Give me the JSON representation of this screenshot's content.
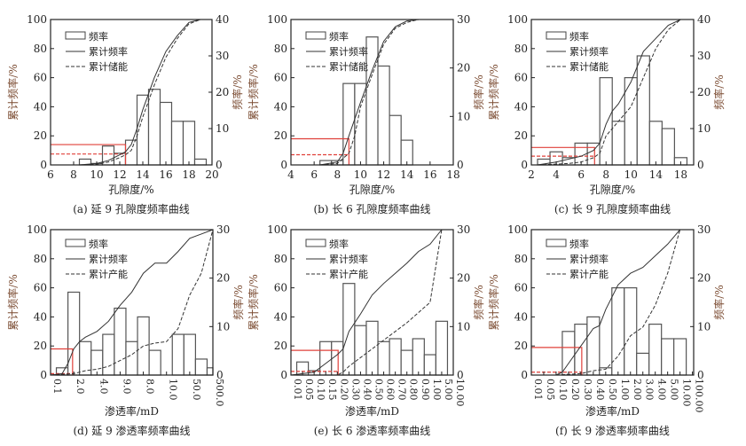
{
  "chart_data": [
    {
      "id": "a",
      "type": "bar+line",
      "caption": "(a) 延 9 孔隙度频率曲线",
      "xlabel": "孔隙度/%",
      "ylabel": "累计频率/%",
      "y2label": "频率/%",
      "legend": [
        "频率",
        "累计频率",
        "累计储能"
      ],
      "legend_position": "top-left",
      "xlim": [
        6,
        20
      ],
      "ylim": [
        0,
        100
      ],
      "y2lim": [
        0,
        40
      ],
      "xticks": [
        6,
        8,
        10,
        12,
        14,
        16,
        18,
        20
      ],
      "xticklabels": [
        "6",
        "8",
        "10",
        "12",
        "14",
        "16",
        "18",
        "20"
      ],
      "yticks": [
        0,
        20,
        40,
        60,
        80,
        100
      ],
      "y2ticks": [
        0,
        10,
        20,
        30,
        40
      ],
      "bars": {
        "edges": [
          8.5,
          9.5,
          10.5,
          11.5,
          12.5,
          13.5,
          14.5,
          15.5,
          16.5,
          17.5,
          18.5,
          19.5
        ],
        "values": [
          1.6,
          0.4,
          5.2,
          3.2,
          6.8,
          19.2,
          20.8,
          17.2,
          12,
          12,
          1.6
        ]
      },
      "cumulative_frequency": {
        "x": [
          8.5,
          10,
          11,
          12,
          12.5,
          13,
          13.5,
          14,
          15,
          16,
          17,
          18,
          19
        ],
        "y": [
          0,
          1,
          3,
          7,
          9,
          14,
          25,
          38,
          60,
          78,
          89,
          98,
          100
        ]
      },
      "cumulative_second": {
        "x": [
          8.5,
          10,
          11,
          12,
          12.5,
          13,
          13.5,
          14,
          15,
          16,
          17,
          18,
          19
        ],
        "y": [
          0,
          0.5,
          2,
          5,
          7,
          10,
          20,
          33,
          55,
          74,
          87,
          97,
          100
        ]
      },
      "cutoff": {
        "x": 12.5,
        "freq": 14,
        "second": 7.5
      }
    },
    {
      "id": "b",
      "type": "bar+line",
      "caption": "(b) 长 6 孔隙度频率曲线",
      "xlabel": "孔隙度/%",
      "ylabel": "累计频率/%",
      "y2label": "频率/%",
      "legend": [
        "频率",
        "累计频率",
        "累计储能"
      ],
      "legend_position": "top-left",
      "xlim": [
        4,
        18
      ],
      "ylim": [
        0,
        100
      ],
      "y2lim": [
        0,
        30
      ],
      "xticks": [
        4,
        6,
        8,
        10,
        12,
        14,
        16,
        18
      ],
      "xticklabels": [
        "4",
        "6",
        "8",
        "10",
        "12",
        "14",
        "16",
        "18"
      ],
      "yticks": [
        0,
        20,
        40,
        60,
        80,
        100
      ],
      "y2ticks": [
        0,
        10,
        20,
        30
      ],
      "bars": {
        "edges": [
          6.5,
          7.5,
          8.5,
          9.5,
          10.5,
          11.5,
          12.5,
          13.5,
          14.5
        ],
        "values": [
          0.9,
          0.9,
          16.8,
          16.8,
          26.4,
          20.4,
          10.2,
          5.1
        ]
      },
      "cumulative_frequency": {
        "x": [
          6.5,
          8,
          8.5,
          9,
          10,
          11,
          12,
          13,
          14,
          15
        ],
        "y": [
          0,
          2,
          8,
          20,
          43,
          65,
          85,
          95,
          99,
          100
        ]
      },
      "cumulative_second": {
        "x": [
          6.5,
          8,
          9,
          9.5,
          10,
          11,
          12,
          13,
          14,
          15
        ],
        "y": [
          0,
          1,
          8,
          20,
          40,
          62,
          83,
          94,
          98,
          100
        ]
      },
      "cutoff": {
        "x": 9.0,
        "freq": 18,
        "second": 7
      }
    },
    {
      "id": "c",
      "type": "bar+line",
      "caption": "(c) 长 9 孔隙度频率曲线",
      "xlabel": "孔隙度/%",
      "ylabel": "累计频率/%",
      "y2label": "频率/%",
      "legend": [
        "频率",
        "累计频率",
        "累计储能"
      ],
      "legend_position": "top-left",
      "xlim": [
        0,
        6.52
      ],
      "ylim": [
        0,
        100
      ],
      "y2lim": [
        0,
        40
      ],
      "xticks": [
        0,
        1,
        2,
        3,
        4,
        5,
        6
      ],
      "xticklabels": [
        "2",
        "4",
        "6",
        "8",
        "10",
        "14",
        "18"
      ],
      "yticks": [
        0,
        20,
        40,
        60,
        80,
        100
      ],
      "y2ticks": [
        0,
        10,
        20,
        30,
        40
      ],
      "bars": {
        "edges": [
          0.25,
          0.75,
          1.25,
          1.75,
          2.25,
          2.75,
          3.25,
          3.75,
          4.25,
          4.75,
          5.25,
          5.75,
          6.25
        ],
        "values": [
          1.6,
          3.6,
          2,
          6,
          6,
          24,
          12,
          24,
          30,
          12,
          10,
          2
        ]
      },
      "cumulative_frequency": {
        "x": [
          0.25,
          1,
          1.5,
          2,
          2.5,
          2.75,
          3,
          3.25,
          3.5,
          4,
          4.5,
          5,
          5.5,
          6
        ],
        "y": [
          0,
          2,
          4,
          6,
          10,
          15,
          28,
          37,
          42,
          57,
          78,
          87,
          96,
          100
        ]
      },
      "cumulative_second": {
        "x": [
          0.25,
          1,
          1.5,
          2,
          2.5,
          2.75,
          3,
          3.5,
          4,
          4.5,
          5,
          5.5,
          6
        ],
        "y": [
          0,
          0.5,
          1,
          2,
          5,
          8,
          20,
          30,
          40,
          60,
          80,
          93,
          100
        ]
      },
      "cutoff": {
        "x": 2.54,
        "freq": 12,
        "second": 6
      }
    },
    {
      "id": "d",
      "type": "bar+line",
      "caption": "(d) 延 9 渗透率频率曲线",
      "xlabel": "渗透率/mD",
      "ylabel": "累计频率/%",
      "y2label": "频率/%",
      "legend": [
        "频率",
        "累计频率",
        "累计产能"
      ],
      "legend_position": "top-left",
      "xlim": [
        0,
        7
      ],
      "ylim": [
        0,
        100
      ],
      "y2lim": [
        0,
        30
      ],
      "xticks": [
        0,
        1,
        2,
        3,
        4,
        5,
        6,
        7
      ],
      "xticklabels": [
        "0.1",
        "2.0",
        "4.0",
        "9.0",
        "8.0",
        "10.0",
        "50.0",
        "500.0"
      ],
      "yticks": [
        0,
        20,
        40,
        60,
        80,
        100
      ],
      "y2ticks": [
        0,
        10,
        20,
        30
      ],
      "bars": {
        "edges": [
          0.25,
          0.75,
          1.25,
          1.75,
          2.25,
          2.75,
          3.25,
          3.75,
          4.25,
          4.75,
          5.25,
          5.75,
          6.25,
          6.75,
          7.0
        ],
        "values": [
          1.5,
          17.1,
          6.9,
          5.1,
          8.4,
          13.8,
          6.9,
          12,
          5.1,
          0,
          8.4,
          8.4,
          3.3,
          1.5
        ]
      },
      "cumulative_frequency": {
        "x": [
          0,
          0.5,
          0.75,
          1,
          1.25,
          1.5,
          2,
          2.5,
          3,
          3.5,
          4,
          4.5,
          5,
          5.5,
          6,
          6.5,
          7
        ],
        "y": [
          0,
          1,
          8,
          18,
          23,
          26,
          30,
          37,
          48,
          57,
          70,
          77,
          77,
          85,
          94,
          97,
          100
        ]
      },
      "cumulative_second": {
        "x": [
          0,
          1,
          1.5,
          2,
          2.5,
          3,
          3.5,
          4,
          4.5,
          5,
          5.5,
          6,
          6.5,
          7
        ],
        "y": [
          0,
          1,
          3,
          4,
          6,
          10,
          14,
          20,
          22,
          23,
          32,
          55,
          70,
          100
        ]
      },
      "cutoff": {
        "x": 0.95,
        "freq": 18,
        "second": 1
      }
    },
    {
      "id": "e",
      "type": "bar+line",
      "caption": "(e) 长 6 渗透率频率曲线",
      "xlabel": "渗透率/mD",
      "ylabel": "累计频率/%",
      "y2label": "频率/%",
      "legend": [
        "频率",
        "累计频率",
        "累计产能"
      ],
      "legend_position": "top-left",
      "xlim": [
        0,
        14
      ],
      "ylim": [
        0,
        100
      ],
      "y2lim": [
        0,
        30
      ],
      "xticks": [
        0,
        1,
        2,
        3,
        4,
        5,
        6,
        7,
        8,
        9,
        10,
        11,
        12,
        13,
        14
      ],
      "xticklabels": [
        "0.01",
        "0.05",
        "0.10",
        "0.15",
        "0.20",
        "0.30",
        "0.40",
        "0.50",
        "0.60",
        "0.70",
        "0.80",
        "0.90",
        "1.00",
        "5.00",
        "10.00"
      ],
      "yticks": [
        0,
        20,
        40,
        60,
        80,
        100
      ],
      "y2ticks": [
        0,
        10,
        20,
        30
      ],
      "bars": {
        "edges": [
          0.5,
          1.5,
          2.5,
          3.5,
          4.5,
          5.5,
          6.5,
          7.5,
          8.5,
          9.5,
          10.5,
          11.5,
          12.5,
          13.5
        ],
        "values": [
          2.7,
          0.9,
          6.9,
          6.9,
          18.9,
          10.2,
          11.1,
          6.9,
          7.5,
          5.1,
          7.5,
          4.2,
          11.1
        ]
      },
      "cumulative_frequency": {
        "x": [
          0,
          2,
          3,
          4,
          4.5,
          5,
          6,
          7,
          8,
          9,
          10,
          11,
          12,
          13
        ],
        "y": [
          0,
          2,
          8,
          14,
          18,
          30,
          42,
          55,
          63,
          70,
          77,
          85,
          90,
          100
        ]
      },
      "cumulative_second": {
        "x": [
          0,
          4,
          4.5,
          5,
          6,
          7,
          8,
          9,
          10,
          11,
          12,
          13
        ],
        "y": [
          0,
          0,
          2,
          6,
          12,
          18,
          24,
          30,
          36,
          43,
          50,
          100
        ]
      },
      "cutoff": {
        "x": 4.07,
        "freq": 17,
        "second": 2.5
      }
    },
    {
      "id": "f",
      "type": "bar+line",
      "caption": "(f) 长 9 渗透率频率曲线",
      "xlabel": "渗透率/mD",
      "ylabel": "累计频率/%",
      "y2label": "频率/%",
      "legend": [
        "频率",
        "累计频率",
        "累计产能"
      ],
      "legend_position": "top-left",
      "xlim": [
        0,
        13.1
      ],
      "ylim": [
        0,
        100
      ],
      "y2lim": [
        0,
        30
      ],
      "xticks": [
        0,
        1,
        2,
        3,
        4,
        5,
        6,
        7,
        8,
        9,
        10,
        11,
        12,
        13
      ],
      "xticklabels": [
        "0.01",
        "0.05",
        "0.10",
        "0.20",
        "0.30",
        "0.40",
        "0.50",
        "1.00",
        "2.00",
        "3.00",
        "4.00",
        "5.00",
        "10.00",
        "100.00"
      ],
      "yticks": [
        0,
        20,
        40,
        60,
        80,
        100
      ],
      "y2ticks": [
        0,
        10,
        20,
        30
      ],
      "bars": {
        "edges": [
          2.5,
          3.5,
          4.5,
          5.5,
          6.5,
          7.5,
          8.5,
          9.5,
          10.5,
          11.5,
          12.5
        ],
        "values": [
          9,
          10.5,
          12,
          1.5,
          18,
          18,
          4.5,
          10.5,
          7.5,
          7.5
        ]
      },
      "cumulative_frequency": {
        "x": [
          2,
          2.5,
          3,
          4,
          5,
          5.5,
          6,
          7,
          8,
          9,
          10,
          11,
          12
        ],
        "y": [
          0,
          2,
          8,
          20,
          32,
          34,
          45,
          62,
          70,
          74,
          82,
          90,
          100
        ]
      },
      "cumulative_second": {
        "x": [
          2,
          4,
          5,
          6,
          7,
          8,
          9,
          10,
          11,
          12
        ],
        "y": [
          0,
          1,
          3,
          4,
          13,
          27,
          33,
          48,
          70,
          100
        ]
      },
      "cutoff": {
        "x": 4.07,
        "freq": 19,
        "second": 2
      }
    }
  ],
  "colors": {
    "axis": "#222222",
    "cutoff": "#e0403a",
    "line": "#333333"
  }
}
